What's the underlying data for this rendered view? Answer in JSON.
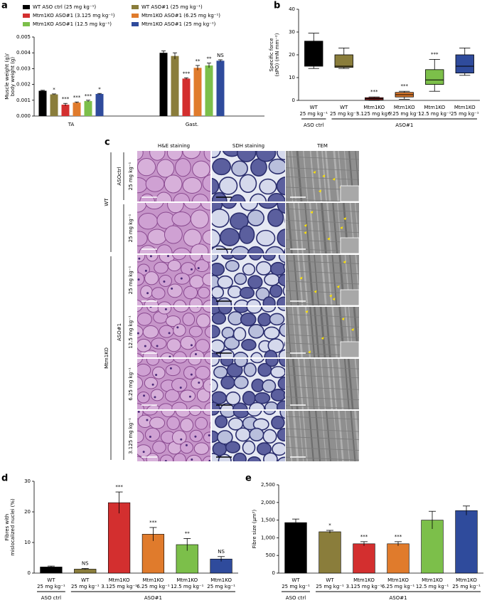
{
  "chart_data": [
    {
      "panel": "a",
      "type": "bar",
      "ylabel": [
        "Muscle weight (g)/",
        "body weight (g)"
      ],
      "categories": [
        "TA",
        "Gast."
      ],
      "ylim": [
        0,
        0.005
      ],
      "yticks": [
        {
          "value": 0,
          "label": "0.000"
        },
        {
          "value": 0.001,
          "label": "0.001"
        },
        {
          "value": 0.002,
          "label": "0.002"
        },
        {
          "value": 0.003,
          "label": "0.003"
        },
        {
          "value": 0.004,
          "label": "0.004"
        },
        {
          "value": 0.005,
          "label": "0.005"
        }
      ],
      "series": [
        {
          "name": "WT ASO ctrl (25 mg kg⁻¹)",
          "color": "#000000",
          "values": [
            0.0016,
            0.004
          ],
          "errors": [
            3e-05,
            0.00012
          ],
          "annotations": [
            null,
            null
          ]
        },
        {
          "name": "WT ASO#1 (25 mg kg⁻¹)",
          "color": "#8a7d3b",
          "values": [
            0.00137,
            0.0038
          ],
          "errors": [
            3e-05,
            0.0002
          ],
          "annotations": [
            "*",
            null
          ]
        },
        {
          "name": "Mtm1KO ASO#1 (3.125 mg kg⁻¹)",
          "color": "#d32f2f",
          "values": [
            0.00072,
            0.00237
          ],
          "errors": [
            8e-05,
            5e-05
          ],
          "annotations": [
            "***",
            "***"
          ]
        },
        {
          "name": "Mtm1KO ASO#1 (6.25 mg kg⁻¹)",
          "color": "#e07b2c",
          "values": [
            0.00085,
            0.00305
          ],
          "errors": [
            4e-05,
            0.00015
          ],
          "annotations": [
            "***",
            "**"
          ]
        },
        {
          "name": "Mtm1KO ASO#1 (12.5 mg kg⁻¹)",
          "color": "#7cbf4a",
          "values": [
            0.00095,
            0.0032
          ],
          "errors": [
            5e-05,
            0.00015
          ],
          "annotations": [
            "***",
            "**"
          ]
        },
        {
          "name": "Mtm1KO ASO#1 (25 mg kg⁻¹)",
          "color": "#2f4b9c",
          "values": [
            0.0014,
            0.0035
          ],
          "errors": [
            3e-05,
            6e-05
          ],
          "annotations": [
            "*",
            "NS"
          ]
        }
      ]
    },
    {
      "panel": "b",
      "type": "box",
      "ylabel": [
        "Specific force",
        "(sPO) (mN mm⁻²)"
      ],
      "categories": [
        [
          "WT",
          "25 mg kg⁻¹"
        ],
        [
          "WT",
          "25 mg kg⁻¹"
        ],
        [
          "Mtm1KO",
          "3.125 mg kg⁻¹"
        ],
        [
          "Mtm1KO",
          "6.25 mg kg⁻¹"
        ],
        [
          "Mtm1KO",
          "12.5 mg kg⁻¹"
        ],
        [
          "Mtm1KO",
          "25 mg kg⁻¹"
        ]
      ],
      "group_labels": [
        "ASO ctrl",
        "ASO#1"
      ],
      "ylim": [
        0,
        40
      ],
      "yticks": [
        0,
        10,
        20,
        30,
        40
      ],
      "colors": [
        "#000000",
        "#8a7d3b",
        "#d32f2f",
        "#e07b2c",
        "#7cbf4a",
        "#2f4b9c"
      ],
      "min": [
        14,
        14,
        0,
        0.5,
        4,
        11
      ],
      "q1": [
        15,
        14.5,
        0.3,
        1.5,
        7,
        12
      ],
      "median": [
        21,
        15,
        0.8,
        2.5,
        9,
        15
      ],
      "q3": [
        26,
        20,
        1.2,
        3.5,
        13.5,
        20
      ],
      "max": [
        29.5,
        23,
        1.5,
        4,
        18,
        23
      ],
      "annotations": [
        null,
        null,
        "***",
        "***",
        "***",
        null
      ]
    },
    {
      "panel": "d",
      "type": "bar",
      "ylabel": [
        "Fibres with",
        "mislocalized nuclei (%)"
      ],
      "categories": [
        [
          "WT",
          "25 mg kg⁻¹"
        ],
        [
          "WT",
          "25 mg kg⁻¹"
        ],
        [
          "Mtm1KO",
          "3.125 mg kg⁻¹"
        ],
        [
          "Mtm1KO",
          "6.25 mg kg⁻¹"
        ],
        [
          "Mtm1KO",
          "12.5 mg kg⁻¹"
        ],
        [
          "Mtm1KO",
          "25 mg kg⁻¹"
        ]
      ],
      "group_labels": [
        "ASO ctrl",
        "ASO#1"
      ],
      "ylim": [
        0,
        30
      ],
      "yticks": [
        0,
        10,
        20,
        30
      ],
      "colors": [
        "#000000",
        "#8a7d3b",
        "#d32f2f",
        "#e07b2c",
        "#7cbf4a",
        "#2f4b9c"
      ],
      "values": [
        2,
        1.3,
        23,
        12.7,
        9.3,
        4.6
      ],
      "errors": [
        0.3,
        0.2,
        3.5,
        2.2,
        2,
        0.8
      ],
      "annotations": [
        null,
        "NS",
        "***",
        "***",
        "**",
        "NS"
      ]
    },
    {
      "panel": "e",
      "type": "bar",
      "ylabel": [
        "Fibre size (µm²)"
      ],
      "categories": [
        [
          "WT",
          "25 mg kg⁻¹"
        ],
        [
          "WT",
          "25 mg kg⁻¹"
        ],
        [
          "Mtm1KO",
          "3.125 mg kg⁻¹"
        ],
        [
          "Mtm1KO",
          "6.25 mg kg⁻¹"
        ],
        [
          "Mtm1KO",
          "12.5 mg kg⁻¹"
        ],
        [
          "Mtm1KO",
          "25 mg kg⁻¹"
        ]
      ],
      "group_labels": [
        "ASO ctrl",
        "ASO#1"
      ],
      "ylim": [
        0,
        2500
      ],
      "yticks": [
        0,
        500,
        {
          "value": 1000,
          "label": "1,000"
        },
        {
          "value": 1500,
          "label": "1,500"
        },
        {
          "value": 2000,
          "label": "2,000"
        },
        {
          "value": 2500,
          "label": "2,500"
        }
      ],
      "colors": [
        "#000000",
        "#8a7d3b",
        "#d32f2f",
        "#e07b2c",
        "#7cbf4a",
        "#2f4b9c"
      ],
      "values": [
        1430,
        1170,
        830,
        830,
        1500,
        1770
      ],
      "errors": [
        100,
        40,
        60,
        60,
        250,
        130
      ],
      "annotations": [
        null,
        "*",
        "***",
        "***",
        null,
        null
      ]
    }
  ],
  "micrographs": {
    "panel": "c",
    "columns": [
      "H&E staining",
      "SDH staining",
      "TEM"
    ],
    "genotypes": [
      "WT",
      "Mtm1KO"
    ],
    "treatments": [
      "ASOctrl",
      "ASO#1"
    ],
    "rows": [
      "25 mg kg⁻¹",
      "25 mg kg⁻¹",
      "25 mg kg⁻¹",
      "12.5 mg kg⁻¹",
      "6.25 mg kg⁻¹",
      "3.125 mg kg⁻¹"
    ]
  }
}
